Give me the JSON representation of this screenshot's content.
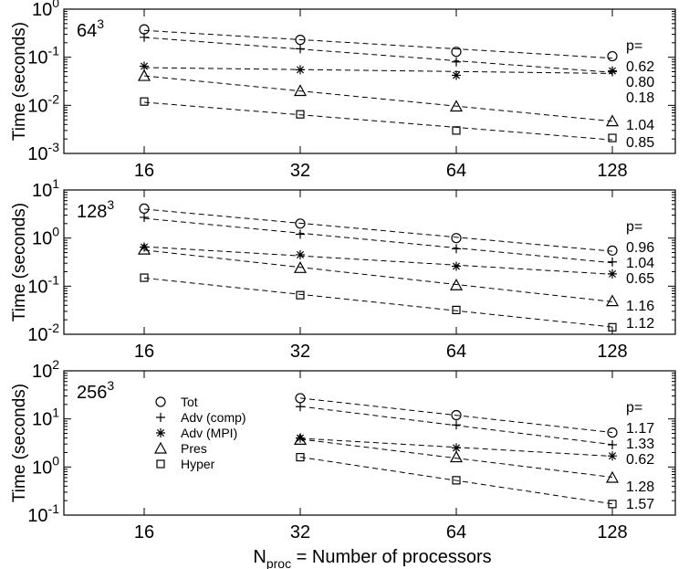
{
  "chart_data": [
    {
      "type": "scatter",
      "grid_label": "64",
      "grid_label_exp": "3",
      "ylabel": "Time (seconds)",
      "y_scale": "log",
      "x_scale": "log2",
      "ylim_exp": [
        -3,
        0
      ],
      "x_ticks": [
        "16",
        "32",
        "64",
        "128"
      ],
      "x": [
        16,
        32,
        64,
        128
      ],
      "p_header": "p=",
      "series": [
        {
          "name": "Tot",
          "marker": "circle",
          "values": [
            0.38,
            0.23,
            0.13,
            0.105
          ],
          "p": "0.62"
        },
        {
          "name": "Adv (comp)",
          "marker": "plus",
          "values": [
            0.26,
            0.15,
            0.08,
            0.05
          ],
          "p": "0.80"
        },
        {
          "name": "Adv (MPI)",
          "marker": "star",
          "values": [
            0.065,
            0.055,
            0.042,
            0.052
          ],
          "p": "0.18"
        },
        {
          "name": "Pres",
          "marker": "triangle",
          "values": [
            0.041,
            0.02,
            0.0095,
            0.0047
          ],
          "p": "1.04"
        },
        {
          "name": "Hyper",
          "marker": "square",
          "values": [
            0.012,
            0.0065,
            0.003,
            0.0021
          ],
          "p": "0.85"
        }
      ]
    },
    {
      "type": "scatter",
      "grid_label": "128",
      "grid_label_exp": "3",
      "ylabel": "Time (seconds)",
      "y_scale": "log",
      "x_scale": "log2",
      "ylim_exp": [
        -2,
        1
      ],
      "x_ticks": [
        "16",
        "32",
        "64",
        "128"
      ],
      "x": [
        16,
        32,
        64,
        128
      ],
      "p_header": "p=",
      "series": [
        {
          "name": "Tot",
          "marker": "circle",
          "values": [
            4.1,
            2.0,
            1.0,
            0.55
          ],
          "p": "0.96"
        },
        {
          "name": "Adv (comp)",
          "marker": "plus",
          "values": [
            2.7,
            1.2,
            0.6,
            0.32
          ],
          "p": "1.04"
        },
        {
          "name": "Adv (MPI)",
          "marker": "star",
          "values": [
            0.65,
            0.45,
            0.26,
            0.18
          ],
          "p": "0.65"
        },
        {
          "name": "Pres",
          "marker": "triangle",
          "values": [
            0.58,
            0.24,
            0.105,
            0.049
          ],
          "p": "1.16"
        },
        {
          "name": "Hyper",
          "marker": "square",
          "values": [
            0.15,
            0.065,
            0.032,
            0.014
          ],
          "p": "1.12"
        }
      ]
    },
    {
      "type": "scatter",
      "grid_label": "256",
      "grid_label_exp": "3",
      "ylabel": "Time (seconds)",
      "xlabel_main": "N",
      "xlabel_sub": "proc",
      "xlabel_rest": " = Number of processors",
      "y_scale": "log",
      "x_scale": "log2",
      "ylim_exp": [
        -1,
        2
      ],
      "x_ticks": [
        "16",
        "32",
        "64",
        "128"
      ],
      "x": [
        32,
        64,
        128
      ],
      "p_header": "p=",
      "legend_position": "upper-left",
      "series": [
        {
          "name": "Tot",
          "marker": "circle",
          "values": [
            27,
            12,
            5.2
          ],
          "p": "1.17"
        },
        {
          "name": "Adv (comp)",
          "marker": "plus",
          "values": [
            18,
            7.5,
            2.9
          ],
          "p": "1.33"
        },
        {
          "name": "Adv (MPI)",
          "marker": "star",
          "values": [
            4.0,
            2.5,
            1.7
          ],
          "p": "0.62"
        },
        {
          "name": "Pres",
          "marker": "triangle",
          "values": [
            3.7,
            1.6,
            0.6
          ],
          "p": "1.28"
        },
        {
          "name": "Hyper",
          "marker": "square",
          "values": [
            1.6,
            0.53,
            0.17
          ],
          "p": "1.57"
        }
      ]
    }
  ]
}
